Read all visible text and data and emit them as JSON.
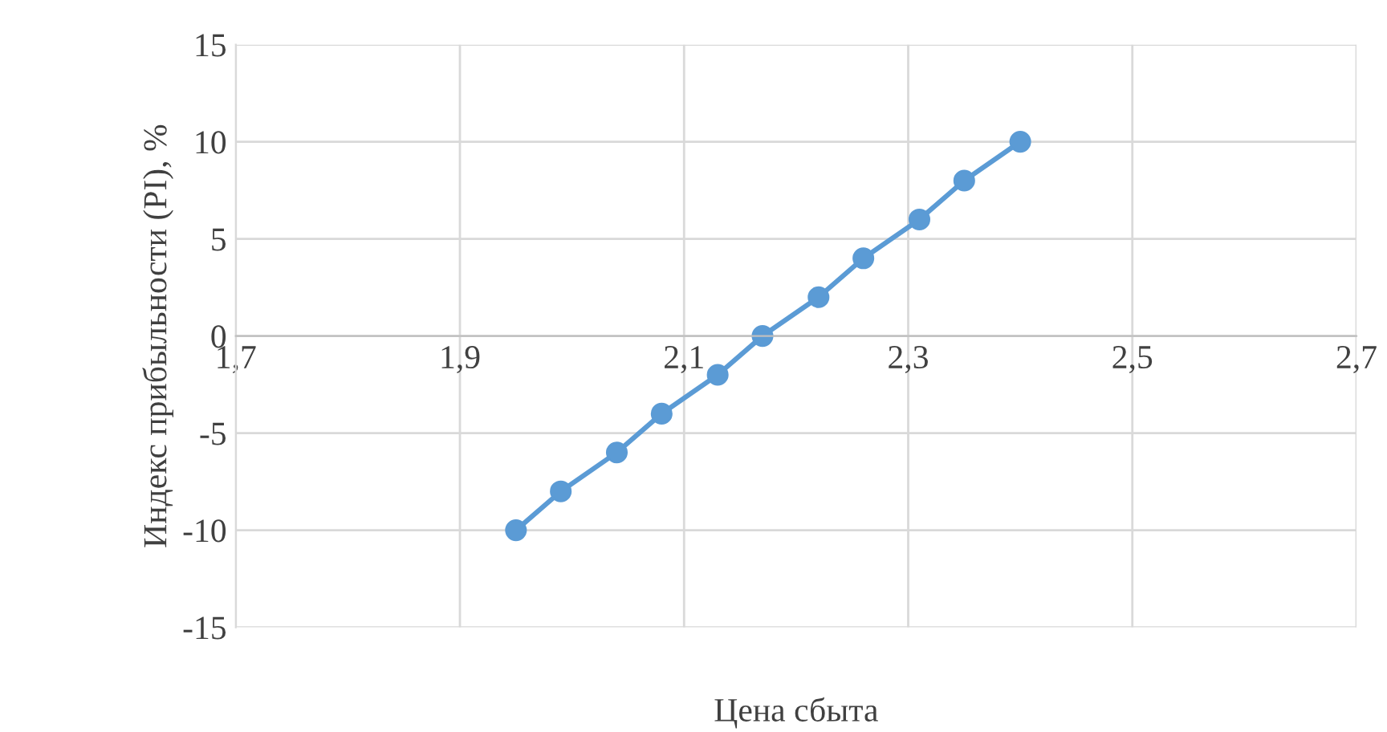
{
  "chart_data": {
    "type": "line",
    "xlabel": "Цена сбыта",
    "ylabel": "Индекс прибыльности (PI), %",
    "x": [
      1.95,
      1.99,
      2.04,
      2.08,
      2.13,
      2.17,
      2.22,
      2.26,
      2.31,
      2.35,
      2.4
    ],
    "series": [
      {
        "color": "#5b9bd5",
        "values": [
          -10,
          -8,
          -6,
          -4,
          -2,
          0,
          2,
          4,
          6,
          8,
          10
        ]
      }
    ],
    "xlim": [
      1.7,
      2.7
    ],
    "xticks": [
      {
        "value": 1.7,
        "label": "1,7"
      },
      {
        "value": 1.9,
        "label": "1,9"
      },
      {
        "value": 2.1,
        "label": "2,1"
      },
      {
        "value": 2.3,
        "label": "2,3"
      },
      {
        "value": 2.5,
        "label": "2,5"
      },
      {
        "value": 2.7,
        "label": "2,7"
      }
    ],
    "ylim": [
      -15,
      15
    ],
    "yticks": [
      -15,
      -10,
      -5,
      0,
      5,
      10,
      15
    ],
    "grid": true,
    "marker": "circle",
    "line_style": "solid",
    "legend": false
  }
}
